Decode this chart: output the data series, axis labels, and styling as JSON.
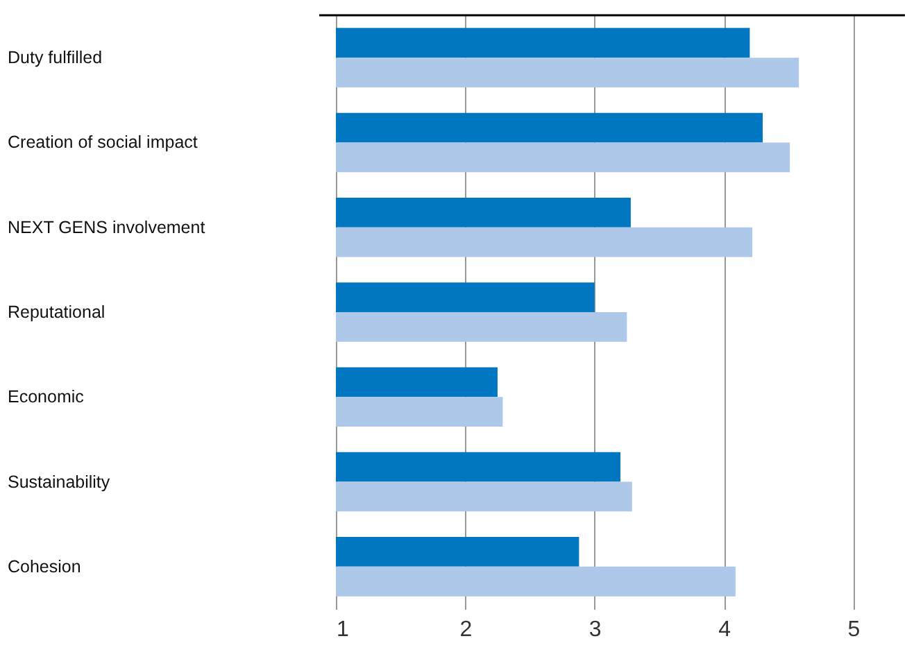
{
  "chart_data": {
    "type": "bar",
    "orientation": "horizontal",
    "categories": [
      "Duty fulfilled",
      "Creation of social impact",
      "NEXT GENS involvement",
      "Reputational",
      "Economic",
      "Sustainability",
      "Cohesion"
    ],
    "series": [
      {
        "color": "#0077c0",
        "values": [
          4.2,
          4.3,
          3.28,
          3.0,
          2.25,
          3.2,
          2.88
        ]
      },
      {
        "color": "#aec8ea",
        "values": [
          4.58,
          4.51,
          4.22,
          3.25,
          2.29,
          3.29,
          4.09
        ]
      }
    ],
    "xlim": [
      1,
      5.4
    ],
    "xticks": [
      1,
      2,
      3,
      4,
      5
    ],
    "grid": "x",
    "legend": false
  }
}
